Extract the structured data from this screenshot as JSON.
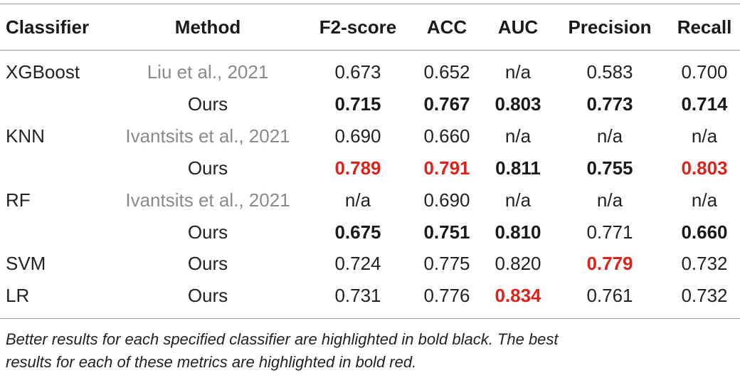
{
  "table": {
    "header": [
      "Classifier",
      "Method",
      "F2-score",
      "ACC",
      "AUC",
      "Precision",
      "Recall"
    ],
    "rows": [
      [
        "XGBoost",
        "Liu et al., 2021",
        "0.673",
        "0.652",
        "n/a",
        "0.583",
        "0.700"
      ],
      [
        null,
        "Ours",
        "0.715",
        "0.767",
        "0.803",
        "0.773",
        "0.714"
      ],
      [
        "KNN",
        "Ivantsits et al., 2021",
        "0.690",
        "0.660",
        "n/a",
        "n/a",
        "n/a"
      ],
      [
        null,
        "Ours",
        "0.789",
        "0.791",
        "0.811",
        "0.755",
        "0.803"
      ],
      [
        "RF",
        "Ivantsits et al., 2021",
        "n/a",
        "0.690",
        "n/a",
        "n/a",
        "n/a"
      ],
      [
        null,
        "Ours",
        "0.675",
        "0.751",
        "0.810",
        "0.771",
        "0.660"
      ],
      [
        "SVM",
        "Ours",
        "0.724",
        "0.775",
        "0.820",
        "0.779",
        "0.732"
      ],
      [
        "LR",
        "Ours",
        "0.731",
        "0.776",
        "0.834",
        "0.761",
        "0.732"
      ]
    ]
  },
  "footnote": [
    "Better results for each specified classifier are highlighted in bold black. The best",
    "results for each of these metrics are highlighted in bold red."
  ]
}
